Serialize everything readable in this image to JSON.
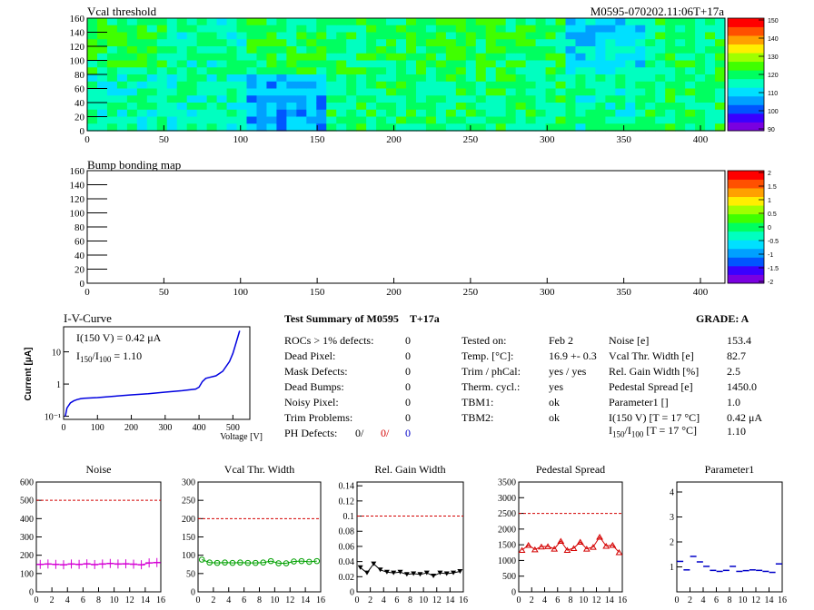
{
  "heatmap_vcal": {
    "title": "Vcal threshold",
    "module_label": "M0595-070202.11:06T+17a",
    "x_ticks": [
      "0",
      "50",
      "100",
      "150",
      "200",
      "250",
      "300",
      "350",
      "400"
    ],
    "y_ticks": [
      "0",
      "20",
      "40",
      "60",
      "80",
      "100",
      "120",
      "140",
      "160"
    ],
    "palette_labels": [
      "150",
      "140",
      "130",
      "120",
      "110",
      "100",
      "90"
    ]
  },
  "heatmap_bump": {
    "title": "Bump bonding map",
    "x_ticks": [
      "0",
      "50",
      "100",
      "150",
      "200",
      "250",
      "300",
      "350",
      "400"
    ],
    "y_ticks": [
      "0",
      "20",
      "40",
      "60",
      "80",
      "100",
      "120",
      "140",
      "160"
    ],
    "palette_labels": [
      "2",
      "1.5",
      "1",
      "0.5",
      "0",
      "-0.5",
      "-1",
      "-1.5",
      "-2"
    ]
  },
  "iv": {
    "title": "I-V-Curve",
    "ylabel": "Current [μA]",
    "xlabel": "Voltage [V]",
    "x_ticks": [
      "0",
      "100",
      "200",
      "300",
      "400",
      "500"
    ],
    "y_ticks": [
      "10⁻¹",
      "1",
      "10"
    ],
    "annot1": "I(150 V) = 0.42 μA",
    "annot2_a": "I",
    "annot2_sub1": "150",
    "annot2_b": "/I",
    "annot2_sub2": "100",
    "annot2_c": " =  1.10"
  },
  "summary": {
    "title": "Test Summary of M0595",
    "tag": "T+17a",
    "grade": "GRADE:  A",
    "left": [
      {
        "label": "ROCs > 1% defects:",
        "value": "0"
      },
      {
        "label": "Dead Pixel:",
        "value": "0"
      },
      {
        "label": "Mask Defects:",
        "value": "0"
      },
      {
        "label": "Dead Bumps:",
        "value": "0"
      },
      {
        "label": "Noisy Pixel:",
        "value": "0"
      },
      {
        "label": "Trim Problems:",
        "value": "0"
      }
    ],
    "ph_label": "PH Defects:",
    "ph_v1": "0/",
    "ph_v2": "0/",
    "ph_v3": "0",
    "middle": [
      {
        "label": "Tested on:",
        "value": "Feb 2"
      },
      {
        "label": "Temp. [°C]:",
        "value": "16.9 +- 0.3"
      },
      {
        "label": "Trim / phCal:",
        "value": "yes / yes"
      },
      {
        "label": "Therm. cycl.:",
        "value": "yes"
      },
      {
        "label": "TBM1:",
        "value": "ok"
      },
      {
        "label": "TBM2:",
        "value": "ok"
      }
    ],
    "right": [
      {
        "label": "Noise [e]",
        "value": "153.4"
      },
      {
        "label": "Vcal Thr. Width [e]",
        "value": "82.7"
      },
      {
        "label": "Rel. Gain Width [%]",
        "value": "2.5"
      },
      {
        "label": "Pedestal Spread [e]",
        "value": "1450.0"
      },
      {
        "label": "Parameter1 []",
        "value": "1.0"
      },
      {
        "label": "I(150 V) [T = 17 °C]",
        "value": "0.42 μA"
      }
    ],
    "ratio_a": "I",
    "ratio_sub1": "150",
    "ratio_b": "/I",
    "ratio_sub2": "100",
    "ratio_c": "  [T = 17 °C]",
    "ratio_value": "1.10"
  },
  "chart_data": [
    {
      "type": "heatmap",
      "title": "Vcal threshold",
      "xlim": [
        0,
        416
      ],
      "ylim": [
        0,
        160
      ],
      "zlim": [
        85,
        150
      ],
      "roc_grid": {
        "columns": 8,
        "rows": 2
      },
      "roc_mean_levels": [
        [
          118,
          114,
          118,
          116,
          119,
          118,
          108,
          116
        ],
        [
          113,
          112,
          104,
          116,
          116,
          116,
          114,
          116
        ]
      ]
    },
    {
      "type": "heatmap",
      "title": "Bump bonding map",
      "xlim": [
        0,
        416
      ],
      "ylim": [
        0,
        160
      ],
      "zlim": [
        -2,
        2
      ],
      "values": []
    },
    {
      "type": "line",
      "title": "I-V-Curve",
      "xlabel": "Voltage [V]",
      "ylabel": "Current [μA]",
      "xlim": [
        0,
        550
      ],
      "ylim": [
        0.08,
        60
      ],
      "log_y": true,
      "x": [
        5,
        10,
        20,
        30,
        40,
        50,
        60,
        80,
        100,
        150,
        200,
        250,
        300,
        350,
        390,
        400,
        410,
        420,
        430,
        450,
        470,
        490,
        500,
        510,
        520
      ],
      "y": [
        0.1,
        0.18,
        0.26,
        0.3,
        0.33,
        0.35,
        0.36,
        0.37,
        0.38,
        0.42,
        0.46,
        0.5,
        0.56,
        0.62,
        0.7,
        0.8,
        1.2,
        1.5,
        1.6,
        1.8,
        2.5,
        5,
        9,
        20,
        45
      ]
    },
    {
      "type": "scatter",
      "title": "Noise",
      "x": [
        0,
        1,
        2,
        3,
        4,
        5,
        6,
        7,
        8,
        9,
        10,
        11,
        12,
        13,
        14,
        15
      ],
      "y": [
        150,
        152,
        150,
        148,
        152,
        150,
        153,
        149,
        152,
        155,
        152,
        153,
        151,
        148,
        158,
        160
      ],
      "ylim": [
        0,
        600
      ],
      "xlim": [
        0,
        16
      ],
      "reference_line": 500,
      "color": "#d400d4"
    },
    {
      "type": "scatter",
      "title": "Vcal Thr. Width",
      "x": [
        0,
        1,
        2,
        3,
        4,
        5,
        6,
        7,
        8,
        9,
        10,
        11,
        12,
        13,
        14,
        15
      ],
      "y": [
        88,
        80,
        79,
        80,
        79,
        80,
        79,
        79,
        80,
        84,
        78,
        78,
        83,
        84,
        82,
        84
      ],
      "ylim": [
        0,
        300
      ],
      "xlim": [
        0,
        16
      ],
      "reference_line": 200,
      "color": "#00a000"
    },
    {
      "type": "scatter",
      "title": "Rel. Gain Width",
      "x": [
        0,
        1,
        2,
        3,
        4,
        5,
        6,
        7,
        8,
        9,
        10,
        11,
        12,
        13,
        14,
        15
      ],
      "y": [
        0.032,
        0.025,
        0.037,
        0.029,
        0.026,
        0.025,
        0.026,
        0.023,
        0.024,
        0.023,
        0.025,
        0.021,
        0.025,
        0.024,
        0.025,
        0.027
      ],
      "ylim": [
        0,
        0.145
      ],
      "xlim": [
        0,
        16
      ],
      "reference_line": 0.1,
      "color": "#000000"
    },
    {
      "type": "scatter",
      "title": "Pedestal Spread",
      "x": [
        0,
        1,
        2,
        3,
        4,
        5,
        6,
        7,
        8,
        9,
        10,
        11,
        12,
        13,
        14,
        15
      ],
      "y": [
        1330,
        1490,
        1350,
        1440,
        1450,
        1370,
        1620,
        1330,
        1390,
        1590,
        1370,
        1430,
        1750,
        1460,
        1490,
        1260
      ],
      "ylim": [
        0,
        3500
      ],
      "xlim": [
        0,
        16
      ],
      "reference_line": 2500,
      "color": "#d40000"
    },
    {
      "type": "scatter",
      "title": "Parameter1",
      "x": [
        0,
        1,
        2,
        3,
        4,
        5,
        6,
        7,
        8,
        9,
        10,
        11,
        12,
        13,
        14,
        15
      ],
      "y": [
        1.22,
        0.88,
        1.42,
        1.2,
        1.02,
        0.86,
        0.82,
        0.86,
        1.02,
        0.82,
        0.85,
        0.88,
        0.86,
        0.82,
        0.78,
        1.12
      ],
      "ylim": [
        0,
        4.4
      ],
      "xlim": [
        0,
        16
      ],
      "color": "#0000c8"
    }
  ],
  "colors": {
    "noise": "#d400d4",
    "vcal_width": "#00a000",
    "gain_width": "#000000",
    "pedestal": "#d40000",
    "parameter1": "#0000c8",
    "reference": "#d40000"
  }
}
